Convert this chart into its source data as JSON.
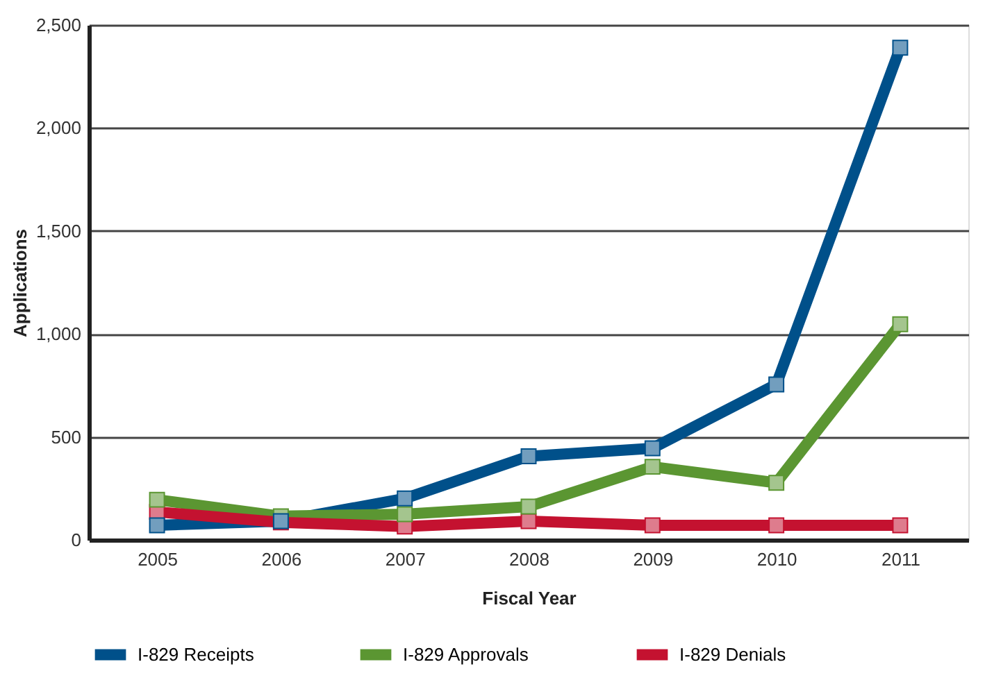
{
  "chart_data": {
    "type": "line",
    "xlabel": "Fiscal Year",
    "ylabel": "Applications",
    "categories": [
      "2005",
      "2006",
      "2007",
      "2008",
      "2009",
      "2010",
      "2011"
    ],
    "series": [
      {
        "name": "I-829 Receipts",
        "color": "#00508a",
        "values": [
          71,
          91,
          201,
          406,
          445,
          755,
          2390
        ]
      },
      {
        "name": "I-829 Approvals",
        "color": "#5b9632",
        "values": [
          195,
          115,
          125,
          162,
          355,
          277,
          1047
        ]
      },
      {
        "name": "I-829 Denials",
        "color": "#c41230",
        "values": [
          136,
          85,
          65,
          91,
          71,
          71,
          71
        ]
      }
    ],
    "ylim": [
      0,
      2500
    ],
    "yticks": [
      0,
      500,
      {
        "value": 1000,
        "label": "1,000"
      },
      {
        "value": 1500,
        "label": "1,500"
      },
      {
        "value": 2000,
        "label": "2,000"
      },
      {
        "value": 2500,
        "label": "2,500"
      }
    ],
    "grid": "y",
    "legend": "bottom",
    "marker": "square",
    "line_style": "solid"
  }
}
